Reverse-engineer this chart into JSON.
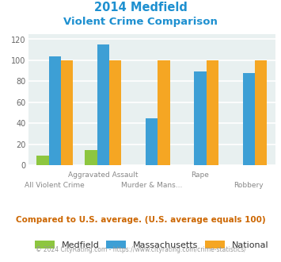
{
  "title_line1": "2014 Medfield",
  "title_line2": "Violent Crime Comparison",
  "categories": [
    "All Violent Crime",
    "Aggravated Assault",
    "Murder & Mans...",
    "Rape",
    "Robbery"
  ],
  "medfield": [
    9,
    14,
    0,
    0,
    0
  ],
  "massachusetts": [
    104,
    115,
    45,
    89,
    88
  ],
  "national": [
    100,
    100,
    100,
    100,
    100
  ],
  "colors": {
    "medfield": "#8dc63f",
    "massachusetts": "#3d9fd5",
    "national": "#f5a623",
    "title": "#1e90d0",
    "background": "#e8f0f0",
    "grid": "#ffffff",
    "xlabel_top": "#9a9a9a",
    "xlabel_bot": "#9a9a9a",
    "footnote": "#cc6600",
    "copyright_text": "#999999",
    "copyright_link": "#3d9fd5"
  },
  "ylim": [
    0,
    125
  ],
  "yticks": [
    0,
    20,
    40,
    60,
    80,
    100,
    120
  ],
  "footnote": "Compared to U.S. average. (U.S. average equals 100)",
  "copyright_prefix": "© 2024 CityRating.com - ",
  "copyright_link": "https://www.cityrating.com/crime-statistics/",
  "bar_width": 0.25
}
